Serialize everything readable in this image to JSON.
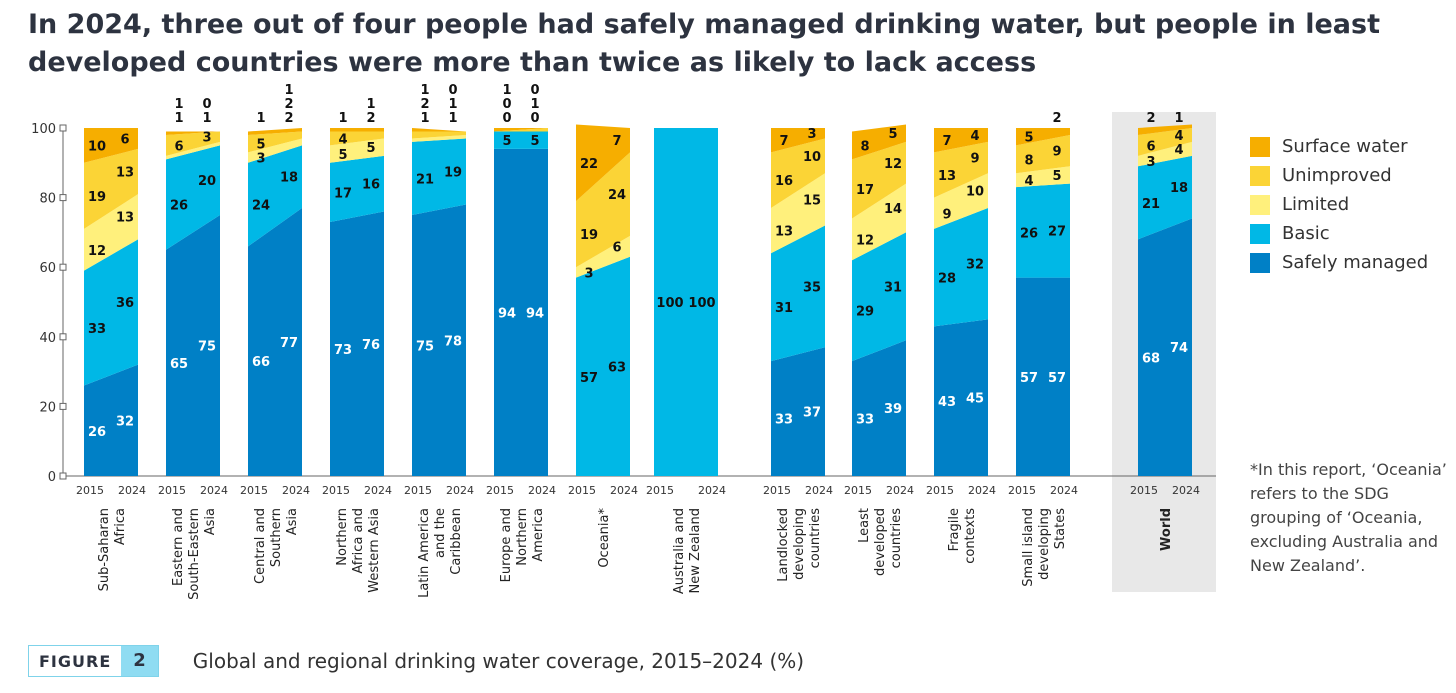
{
  "title": "In 2024, three out of four people had safely managed drinking water, but people in least developed countries were more than twice as likely to lack access",
  "figure": {
    "label": "FIGURE",
    "number": "2",
    "caption": "Global and regional drinking water coverage, 2015–2024 (%)"
  },
  "footnote": "*In this report, ‘Oceania’ refers to the SDG grouping of ‘Oceania, excluding Australia and New Zealand’.",
  "colors": {
    "Surface water": "#f6ae00",
    "Unimproved": "#fbd436",
    "Limited": "#fff07c",
    "Basic": "#00b8e6",
    "Safely managed": "#0080c6"
  },
  "chart_data": {
    "type": "bar",
    "subtype": "stacked-slope",
    "ylim": [
      0,
      100
    ],
    "yticks": [
      0,
      20,
      40,
      60,
      80,
      100
    ],
    "years": [
      "2015",
      "2024"
    ],
    "series_order": [
      "Safely managed",
      "Basic",
      "Limited",
      "Unimproved",
      "Surface water"
    ],
    "legend": [
      "Surface water",
      "Unimproved",
      "Limited",
      "Basic",
      "Safely managed"
    ],
    "legend_position": "right",
    "categories": [
      {
        "name": "Sub-Saharan Africa",
        "lines": [
          "Sub-Saharan",
          "Africa"
        ],
        "v2015": [
          26,
          33,
          12,
          19,
          10
        ],
        "v2024": [
          32,
          36,
          13,
          13,
          6
        ]
      },
      {
        "name": "Eastern and South-Eastern Asia",
        "lines": [
          "Eastern and",
          "South-Eastern",
          "Asia"
        ],
        "v2015": [
          65,
          26,
          1,
          6,
          1
        ],
        "v2024": [
          75,
          20,
          1,
          3,
          0
        ]
      },
      {
        "name": "Central and Southern Asia",
        "lines": [
          "Central and",
          "Southern",
          "Asia"
        ],
        "v2015": [
          66,
          24,
          3,
          5,
          1
        ],
        "v2024": [
          77,
          18,
          2,
          2,
          1
        ]
      },
      {
        "name": "Northern Africa and Western Asia",
        "lines": [
          "Northern",
          "Africa and",
          "Western Asia"
        ],
        "v2015": [
          73,
          17,
          5,
          4,
          1
        ],
        "v2024": [
          76,
          16,
          5,
          2,
          1
        ]
      },
      {
        "name": "Latin America and the Caribbean",
        "lines": [
          "Latin America",
          "and the",
          "Caribbean"
        ],
        "v2015": [
          75,
          21,
          1,
          2,
          1
        ],
        "v2024": [
          78,
          19,
          1,
          1,
          0
        ]
      },
      {
        "name": "Europe and Northern America",
        "lines": [
          "Europe and",
          "Northern",
          "America"
        ],
        "v2015": [
          94,
          5,
          0,
          0,
          1
        ],
        "v2024": [
          94,
          5,
          0,
          1,
          0
        ]
      },
      {
        "name": "Oceania*",
        "lines": [
          "Oceania*"
        ],
        "v2015": [
          null,
          57,
          3,
          19,
          22
        ],
        "v2024": [
          null,
          63,
          6,
          24,
          7
        ]
      },
      {
        "name": "Australia and New Zealand",
        "lines": [
          "Australia and",
          "New Zealand"
        ],
        "v2015": [
          null,
          100,
          0,
          0,
          0
        ],
        "v2024": [
          null,
          100,
          0,
          0,
          0
        ]
      },
      {
        "name": "Landlocked developing countries",
        "lines": [
          "Landlocked",
          "developing",
          "countries"
        ],
        "v2015": [
          33,
          31,
          13,
          16,
          7
        ],
        "v2024": [
          37,
          35,
          15,
          10,
          3
        ]
      },
      {
        "name": "Least developed countries",
        "lines": [
          "Least",
          "developed",
          "countries"
        ],
        "v2015": [
          33,
          29,
          12,
          17,
          8
        ],
        "v2024": [
          39,
          31,
          14,
          12,
          5
        ]
      },
      {
        "name": "Fragile contexts",
        "lines": [
          "Fragile",
          "contexts"
        ],
        "v2015": [
          43,
          28,
          9,
          13,
          7
        ],
        "v2024": [
          45,
          32,
          10,
          9,
          4
        ]
      },
      {
        "name": "Small island developing States",
        "lines": [
          "Small island",
          "developing",
          "States"
        ],
        "v2015": [
          57,
          26,
          4,
          8,
          5
        ],
        "v2024": [
          57,
          27,
          5,
          9,
          2
        ]
      },
      {
        "name": "World",
        "lines": [
          "World"
        ],
        "v2015": [
          68,
          21,
          3,
          6,
          2
        ],
        "v2024": [
          74,
          18,
          4,
          4,
          1
        ]
      }
    ]
  }
}
